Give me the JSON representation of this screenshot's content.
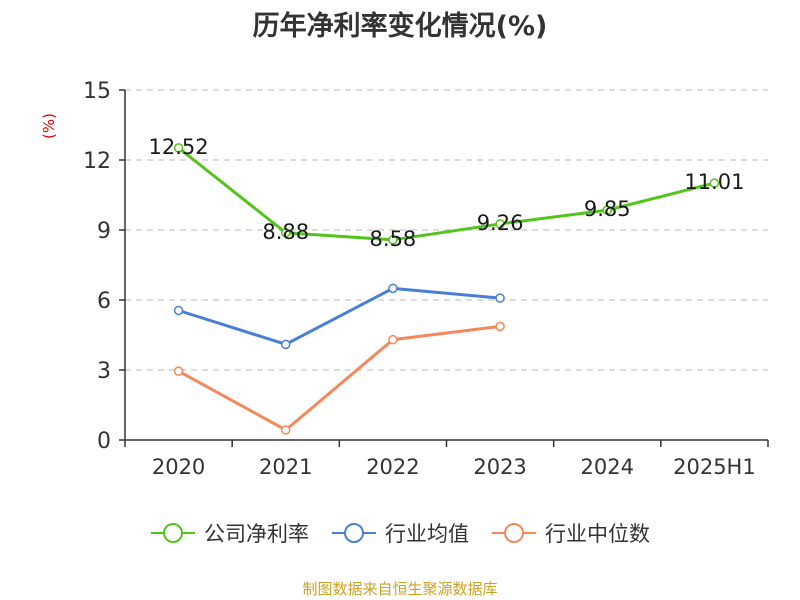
{
  "chart_data": {
    "type": "line",
    "title": "历年净利率变化情况(%)",
    "ylabel": "(%)",
    "xlabel": "",
    "categories": [
      "2020",
      "2021",
      "2022",
      "2023",
      "2024",
      "2025H1"
    ],
    "ylim": [
      0,
      15
    ],
    "yticks": [
      0,
      3,
      6,
      9,
      12,
      15
    ],
    "grid": true,
    "legend_position": "bottom",
    "series": [
      {
        "name": "公司净利率",
        "color": "#52c41a",
        "values": [
          12.52,
          8.88,
          8.58,
          9.26,
          9.85,
          11.01
        ],
        "labels": [
          "12.52",
          "8.88",
          "8.58",
          "9.26",
          "9.85",
          "11.01"
        ]
      },
      {
        "name": "行业均值",
        "color": "#4a7fd6",
        "values": [
          5.55,
          4.1,
          6.5,
          6.08,
          null,
          null
        ]
      },
      {
        "name": "行业中位数",
        "color": "#f5885a",
        "values": [
          2.95,
          0.43,
          4.3,
          4.87,
          null,
          null
        ]
      }
    ]
  },
  "source": "制图数据来自恒生聚源数据库"
}
